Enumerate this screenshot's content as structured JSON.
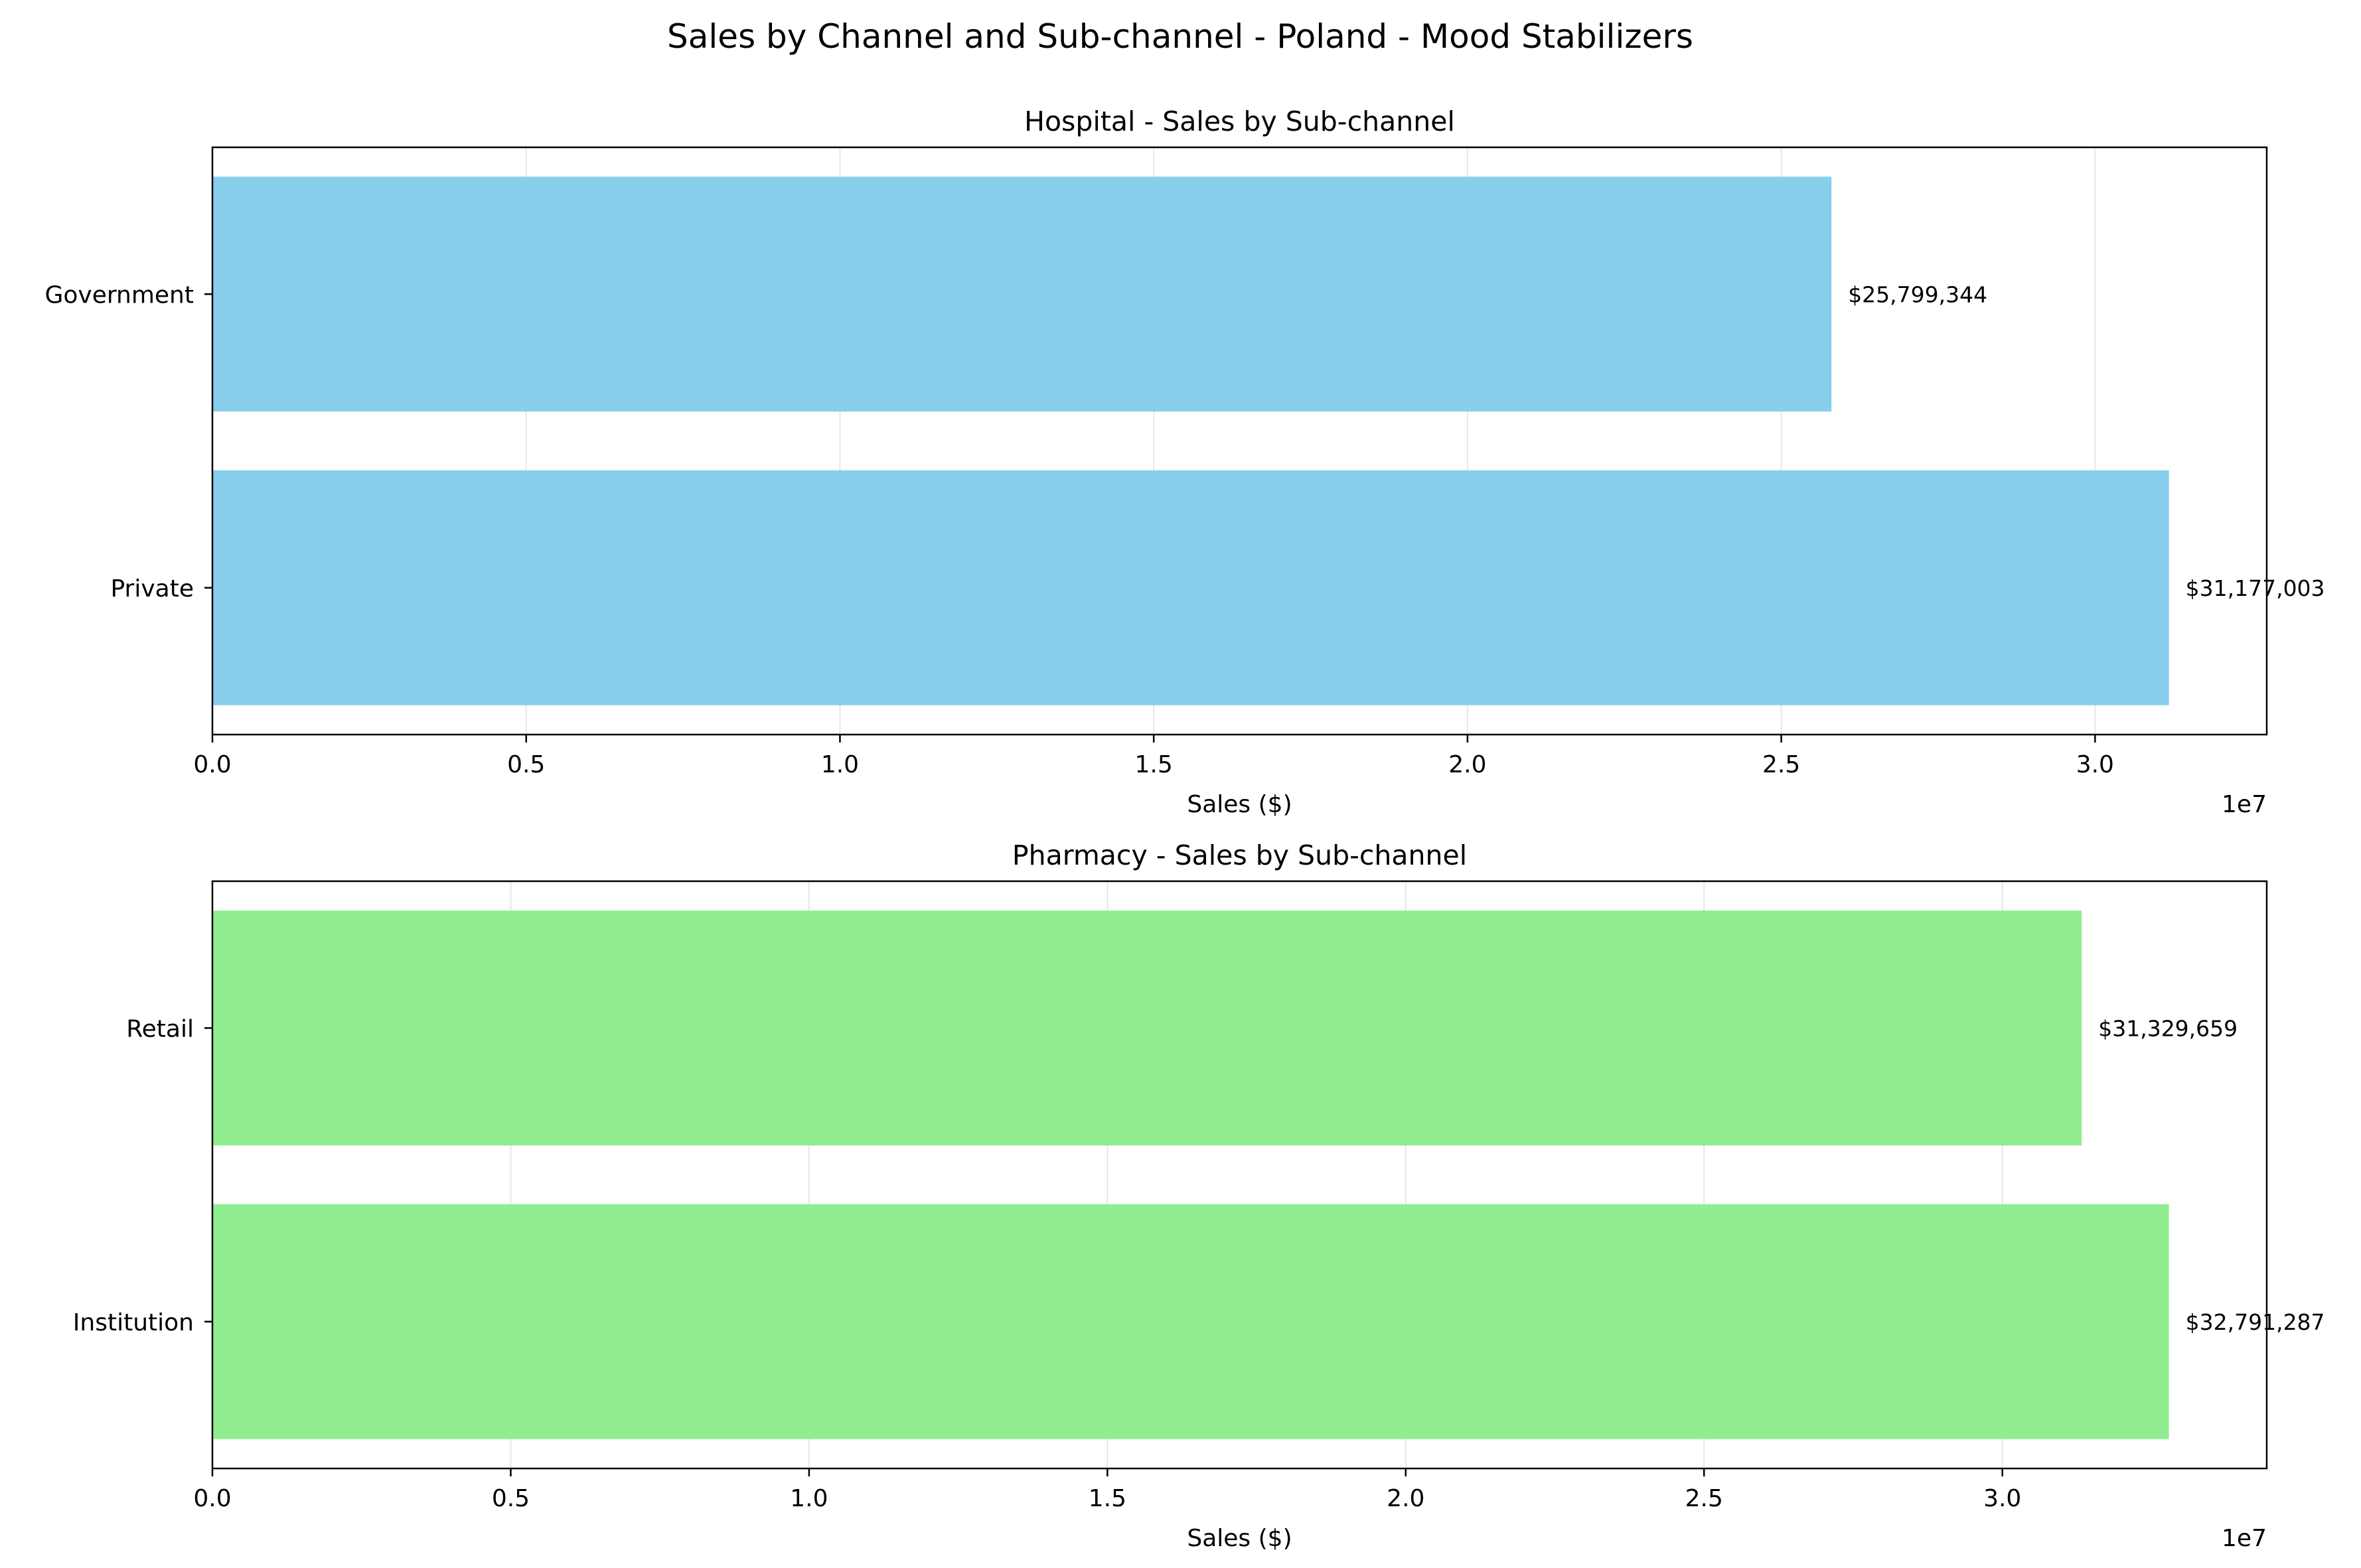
{
  "chart_data": {
    "type": "bar",
    "orientation": "horizontal",
    "suptitle": "Sales by Channel and Sub-channel - Poland - Mood Stabilizers",
    "grid": true,
    "panels": [
      {
        "title": "Hospital - Sales by Sub-channel",
        "xlabel": "Sales ($)",
        "x_offset_text": "1e7",
        "categories": [
          "Government",
          "Private"
        ],
        "values": [
          25799344,
          31177003
        ],
        "value_labels": [
          "$25,799,344",
          "$31,177,003"
        ],
        "color": "#87ceeb",
        "xlim": [
          0,
          32735853
        ],
        "xticks": [
          0,
          5000000,
          10000000,
          15000000,
          20000000,
          25000000,
          30000000
        ],
        "xtick_labels": [
          "0.0",
          "0.5",
          "1.0",
          "1.5",
          "2.0",
          "2.5",
          "3.0"
        ]
      },
      {
        "title": "Pharmacy - Sales by Sub-channel",
        "xlabel": "Sales ($)",
        "x_offset_text": "1e7",
        "categories": [
          "Retail",
          "Institution"
        ],
        "values": [
          31329659,
          32791287
        ],
        "value_labels": [
          "$31,329,659",
          "$32,791,287"
        ],
        "color": "#90ee90",
        "xlim": [
          0,
          34430851
        ],
        "xticks": [
          0,
          5000000,
          10000000,
          15000000,
          20000000,
          25000000,
          30000000
        ],
        "xtick_labels": [
          "0.0",
          "0.5",
          "1.0",
          "1.5",
          "2.0",
          "2.5",
          "3.0"
        ]
      }
    ]
  }
}
